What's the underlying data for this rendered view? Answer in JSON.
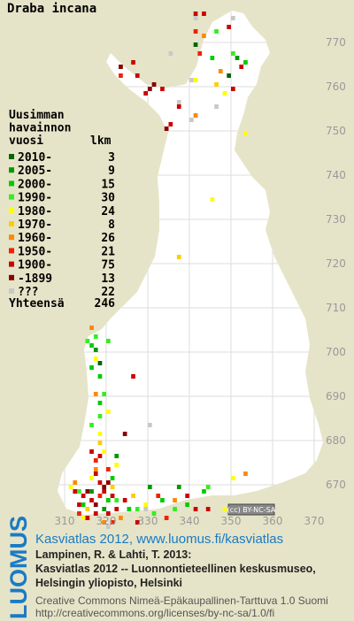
{
  "title": "Draba incana",
  "legend": {
    "heading": [
      "Uusimman",
      "havainnon",
      "vuosi"
    ],
    "count_heading": "lkm",
    "classes": [
      {
        "label": "2010-",
        "count": 3,
        "color": "#006600",
        "squares": [
          [
            341,
            769
          ],
          [
            349,
            762
          ],
          [
            318,
            697
          ]
        ]
      },
      {
        "label": "2005-",
        "count": 9,
        "color": "#009900",
        "squares": [
          [
            351,
            766
          ],
          [
            317,
            700
          ],
          [
            322,
            676
          ],
          [
            337,
            669
          ],
          [
            330,
            669
          ],
          [
            316,
            668
          ],
          [
            319,
            664
          ]
        ]
      },
      {
        "label": "2000-",
        "count": 15,
        "color": "#00cc00",
        "squares": [
          [
            353,
            765
          ],
          [
            345,
            766
          ],
          [
            316,
            701
          ],
          [
            318,
            688
          ],
          [
            314,
            665
          ],
          [
            320,
            666
          ],
          [
            333,
            666
          ],
          [
            343,
            668
          ],
          [
            325,
            664
          ],
          [
            316,
            696
          ],
          [
            318,
            694
          ],
          [
            321,
            671
          ],
          [
            339,
            665
          ]
        ]
      },
      {
        "label": "1990-",
        "count": 30,
        "color": "#33ee22",
        "squares": [
          [
            350,
            767
          ],
          [
            346,
            772
          ],
          [
            315,
            702
          ],
          [
            317,
            703
          ],
          [
            319,
            690
          ],
          [
            313,
            668
          ],
          [
            322,
            666
          ],
          [
            336,
            664
          ],
          [
            344,
            669
          ],
          [
            318,
            685
          ],
          [
            316,
            683
          ],
          [
            327,
            664
          ],
          [
            331,
            663
          ],
          [
            320,
            702
          ]
        ]
      },
      {
        "label": "1980-",
        "count": 24,
        "color": "#ffff00",
        "squares": [
          [
            341,
            761
          ],
          [
            348,
            758
          ],
          [
            353,
            749
          ],
          [
            345,
            734
          ],
          [
            318,
            681
          ],
          [
            319,
            677
          ],
          [
            322,
            674
          ],
          [
            316,
            671
          ],
          [
            311,
            669
          ],
          [
            329,
            665
          ],
          [
            350,
            671
          ],
          [
            317,
            698
          ],
          [
            320,
            686
          ],
          [
            314,
            662
          ],
          [
            348,
            664
          ]
        ]
      },
      {
        "label": "1970-",
        "count": 8,
        "color": "#ffcc00",
        "squares": [
          [
            346,
            760
          ],
          [
            337,
            721
          ],
          [
            318,
            679
          ],
          [
            321,
            669
          ],
          [
            315,
            664
          ],
          [
            326,
            667
          ]
        ]
      },
      {
        "label": "1960-",
        "count": 26,
        "color": "#ff8800",
        "squares": [
          [
            343,
            771
          ],
          [
            347,
            763
          ],
          [
            341,
            753
          ],
          [
            317,
            673
          ],
          [
            312,
            670
          ],
          [
            319,
            661
          ],
          [
            336,
            666
          ],
          [
            323,
            662
          ],
          [
            353,
            672
          ],
          [
            316,
            705
          ],
          [
            317,
            690
          ]
        ]
      },
      {
        "label": "1950-",
        "count": 21,
        "color": "#ee2200",
        "squares": [
          [
            341,
            772
          ],
          [
            342,
            767
          ],
          [
            323,
            762
          ],
          [
            317,
            675
          ],
          [
            320,
            673
          ],
          [
            313,
            663
          ],
          [
            318,
            667
          ],
          [
            332,
            667
          ],
          [
            334,
            662
          ],
          [
            321,
            661
          ]
        ]
      },
      {
        "label": "1900-",
        "count": 75,
        "color": "#cc0000",
        "squares": [
          [
            341,
            776
          ],
          [
            343,
            776
          ],
          [
            350,
            759
          ],
          [
            349,
            773
          ],
          [
            352,
            764
          ],
          [
            326,
            765
          ],
          [
            327,
            762
          ],
          [
            329,
            758
          ],
          [
            333,
            759
          ],
          [
            337,
            755
          ],
          [
            335,
            751
          ],
          [
            326,
            694
          ],
          [
            317,
            672
          ],
          [
            316,
            677
          ],
          [
            318,
            676
          ],
          [
            312,
            668
          ],
          [
            314,
            667
          ],
          [
            316,
            666
          ],
          [
            313,
            665
          ],
          [
            315,
            662
          ],
          [
            317,
            663
          ],
          [
            319,
            668
          ],
          [
            321,
            667
          ],
          [
            318,
            670
          ],
          [
            320,
            663
          ],
          [
            324,
            666
          ],
          [
            322,
            664
          ],
          [
            339,
            667
          ],
          [
            341,
            664
          ],
          [
            344,
            664
          ],
          [
            327,
            661
          ]
        ]
      },
      {
        "label": "-1899",
        "count": 13,
        "color": "#880000",
        "squares": [
          [
            323,
            764
          ],
          [
            331,
            760
          ],
          [
            330,
            759
          ],
          [
            334,
            750
          ],
          [
            319,
            669
          ],
          [
            317,
            665
          ],
          [
            315,
            668
          ],
          [
            320,
            670
          ],
          [
            324,
            681
          ]
        ]
      },
      {
        "label": "???",
        "count": 22,
        "color": "#c8c8c8",
        "squares": [
          [
            350,
            775
          ],
          [
            341,
            775
          ],
          [
            337,
            756
          ],
          [
            340,
            752
          ],
          [
            335,
            767
          ],
          [
            340,
            761
          ],
          [
            346,
            755
          ],
          [
            329,
            664
          ],
          [
            320,
            660
          ],
          [
            330,
            683
          ]
        ]
      }
    ],
    "total_label": "Yhteensä",
    "total": 246
  },
  "grid": {
    "northing_ticks": [
      770,
      760,
      750,
      740,
      730,
      720,
      710,
      700,
      690,
      680,
      670
    ],
    "easting_ticks": [
      310,
      320,
      330,
      340,
      350,
      360,
      370
    ]
  },
  "badge": "(cc) BY-NC-SA",
  "logo": "LUOMUS",
  "footer": {
    "link": "Kasviatlas 2012, www.luomus.fi/kasviatlas",
    "citation": [
      "Lampinen, R. & Lahti, T. 2013:",
      "Kasviatlas 2012 -- Luonnontieteellinen keskusmuseo,",
      "Helsingin yliopisto, Helsinki"
    ],
    "license": [
      "Creative Commons Nimeä-Epäkaupallinen-Tarttuva 1.0 Suomi",
      "http://creativecommons.org/licenses/by-nc-sa/1.0/fi"
    ]
  }
}
